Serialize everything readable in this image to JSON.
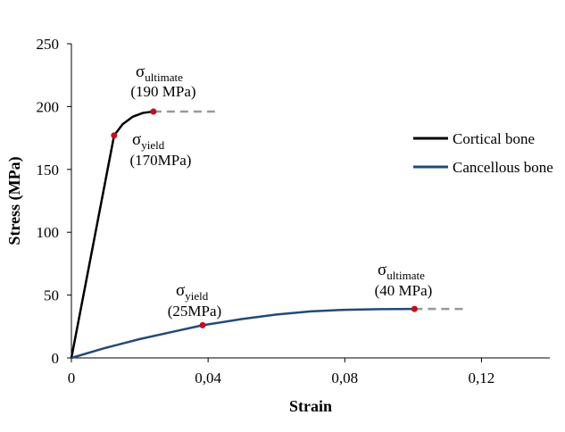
{
  "chart_data": {
    "type": "line",
    "x_label": "Strain",
    "y_label": "Stress (MPa)",
    "xlim": [
      0,
      0.14
    ],
    "ylim": [
      0,
      250
    ],
    "xticks": [
      0,
      {
        "value": 0.04,
        "label": "0,04"
      },
      {
        "value": 0.08,
        "label": "0,08"
      },
      {
        "value": 0.12,
        "label": "0,12"
      }
    ],
    "yticks": [
      0,
      50,
      100,
      150,
      200,
      250
    ],
    "legend": "right",
    "marker_color": "#c0101c",
    "dash_color": "#999999",
    "series": [
      {
        "name": "Cortical bone",
        "color": "#000000",
        "x": [
          0,
          0.0125,
          0.015,
          0.018,
          0.021,
          0.024
        ],
        "values": [
          0,
          177,
          186,
          192,
          195,
          196
        ],
        "extension_x": [
          0.024,
          0.042
        ],
        "extension_values": [
          196,
          196
        ]
      },
      {
        "name": "Cancellous bone",
        "color": "#244a78",
        "x": [
          0,
          0.01,
          0.02,
          0.03,
          0.0384,
          0.05,
          0.06,
          0.07,
          0.08,
          0.09,
          0.1004
        ],
        "values": [
          0,
          8,
          15,
          21,
          26,
          31,
          34.5,
          37,
          38.3,
          38.8,
          39
        ],
        "extension_x": [
          0.1004,
          0.116
        ],
        "extension_values": [
          39,
          39
        ]
      }
    ],
    "annotations": [
      {
        "symbol": "σ",
        "subscript": "ultimate",
        "text": "(190 MPa)"
      },
      {
        "symbol": "σ",
        "subscript": "yield",
        "text": "(170MPa)"
      },
      {
        "symbol": "σ",
        "subscript": "yield",
        "text": "(25MPa)"
      },
      {
        "symbol": "σ",
        "subscript": "ultimate",
        "text": "(40 MPa)"
      }
    ]
  }
}
